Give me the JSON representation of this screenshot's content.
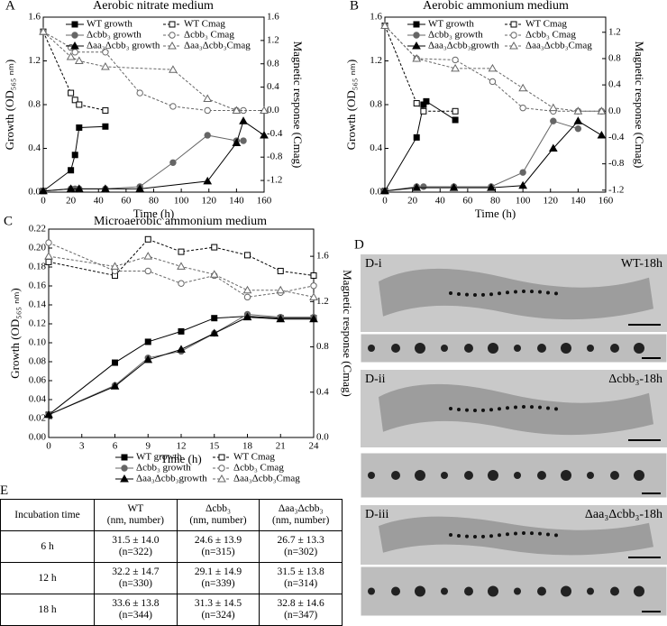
{
  "chart_data": [
    {
      "type": "line",
      "label": "A",
      "title": "Aerobic nitrate medium",
      "x_label": "Time (h)",
      "y_label": "Growth (OD₅₆₅ ₙₘ)",
      "y2_label": "Magnetic response (Cmag)",
      "xlim": [
        0,
        160
      ],
      "xticks": [
        0,
        20,
        40,
        60,
        80,
        100,
        120,
        140,
        160
      ],
      "ylim": [
        0,
        1.6
      ],
      "yticks": [
        {
          "value": 0,
          "label": "0.0"
        },
        0.4,
        0.8,
        1.2,
        1.6
      ],
      "y2lim": [
        -1.4,
        1.6
      ],
      "y2ticks": [
        -1.2,
        -0.8,
        -0.4,
        {
          "value": 0,
          "label": "0.0"
        },
        0.4,
        0.8,
        1.2,
        1.6
      ],
      "legend": "upper right",
      "series": [
        {
          "name": "WT growth",
          "color": "#000",
          "marker": "square",
          "filled": true,
          "dashed": false,
          "x": [
            0,
            20,
            23,
            26,
            45
          ],
          "values": [
            0.01,
            0.2,
            0.34,
            0.59,
            0.6
          ]
        },
        {
          "name": "WT Cmag",
          "color": "#000",
          "marker": "square",
          "filled": false,
          "dashed": true,
          "axis": "y2",
          "x": [
            0,
            20,
            23,
            26,
            45
          ],
          "values": [
            1.35,
            0.3,
            0.18,
            0.1,
            0.0
          ]
        },
        {
          "name": "Δcbb₃ growth",
          "color": "#666",
          "marker": "circle",
          "filled": true,
          "dashed": false,
          "x": [
            0,
            20,
            23,
            26,
            45,
            70,
            94,
            119,
            140,
            145
          ],
          "values": [
            0.01,
            0.03,
            0.03,
            0.03,
            0.03,
            0.05,
            0.27,
            0.52,
            0.47,
            0.47
          ]
        },
        {
          "name": "Δcbb₃ Cmag",
          "color": "#666",
          "marker": "circle",
          "filled": false,
          "dashed": true,
          "axis": "y2",
          "x": [
            0,
            20,
            23,
            45,
            70,
            94,
            119,
            140,
            145
          ],
          "values": [
            1.35,
            1.08,
            1.0,
            1.0,
            0.3,
            0.07,
            0.0,
            0.0,
            0.0
          ]
        },
        {
          "name": "Δaa₃Δcbb₃ growth",
          "color": "#000",
          "marker": "triangle",
          "filled": true,
          "dashed": false,
          "x": [
            0,
            20,
            26,
            45,
            70,
            119,
            140,
            145,
            160
          ],
          "values": [
            0.01,
            0.03,
            0.03,
            0.03,
            0.03,
            0.1,
            0.45,
            0.65,
            0.52
          ]
        },
        {
          "name": "Δaa₃Δcbb₃Cmag",
          "color": "#666",
          "marker": "triangle",
          "filled": false,
          "dashed": true,
          "axis": "y2",
          "x": [
            0,
            20,
            26,
            45,
            94,
            119,
            140,
            160
          ],
          "values": [
            1.35,
            0.92,
            0.85,
            0.75,
            0.7,
            0.2,
            0.0,
            0.0
          ]
        }
      ]
    },
    {
      "type": "line",
      "label": "B",
      "title": "Aerobic ammonium medium",
      "x_label": "Time (h)",
      "y_label": "Growth (OD₅₆₅ ₙₘ)",
      "y2_label": "Magnetic response (Cmag)",
      "xlim": [
        0,
        160
      ],
      "xticks": [
        0,
        20,
        40,
        60,
        80,
        100,
        120,
        140,
        160
      ],
      "ylim": [
        0,
        1.6
      ],
      "yticks": [
        {
          "value": 0,
          "label": "0.0"
        },
        0.4,
        0.8,
        1.2,
        1.6
      ],
      "y2lim": [
        -1.23,
        1.43
      ],
      "y2ticks": [
        -1.2,
        -0.8,
        -0.4,
        {
          "value": 0,
          "label": "0.0"
        },
        0.4,
        0.8,
        1.2
      ],
      "legend": "upper right",
      "series": [
        {
          "name": "WT growth",
          "color": "#000",
          "marker": "square",
          "filled": true,
          "dashed": false,
          "x": [
            0,
            23,
            28,
            30,
            51
          ],
          "values": [
            0.01,
            0.5,
            0.8,
            0.83,
            0.66
          ]
        },
        {
          "name": "WT Cmag",
          "color": "#000",
          "marker": "square",
          "filled": false,
          "dashed": true,
          "axis": "y2",
          "x": [
            0,
            23,
            28,
            51
          ],
          "values": [
            1.3,
            0.12,
            0.0,
            0.0
          ]
        },
        {
          "name": "Δcbb₃ growth",
          "color": "#666",
          "marker": "circle",
          "filled": true,
          "dashed": false,
          "x": [
            0,
            23,
            28,
            50,
            77,
            100,
            122,
            140
          ],
          "values": [
            0.01,
            0.05,
            0.05,
            0.05,
            0.05,
            0.18,
            0.65,
            0.58
          ]
        },
        {
          "name": "Δcbb₃ Cmag",
          "color": "#666",
          "marker": "circle",
          "filled": false,
          "dashed": true,
          "axis": "y2",
          "x": [
            0,
            23,
            51,
            78,
            100,
            122,
            140,
            157
          ],
          "values": [
            1.3,
            0.8,
            0.78,
            0.45,
            0.05,
            0.0,
            0.0,
            0.0
          ]
        },
        {
          "name": "Δaa₃Δcbb₃growth",
          "color": "#000",
          "marker": "triangle",
          "filled": true,
          "dashed": false,
          "x": [
            0,
            23,
            50,
            77,
            100,
            122,
            140,
            157
          ],
          "values": [
            0.01,
            0.04,
            0.04,
            0.04,
            0.06,
            0.4,
            0.65,
            0.52
          ]
        },
        {
          "name": "Δaa₃Δcbb₃Cmag",
          "color": "#666",
          "marker": "triangle",
          "filled": false,
          "dashed": true,
          "axis": "y2",
          "x": [
            0,
            23,
            51,
            78,
            100,
            122,
            140,
            157
          ],
          "values": [
            1.3,
            0.8,
            0.65,
            0.65,
            0.35,
            0.05,
            0.0,
            0.0
          ]
        }
      ]
    },
    {
      "type": "line",
      "label": "C",
      "title": "Microaerobic ammonium medium",
      "x_label": "Time (h)",
      "y_label": "Growth (OD₅₆₅ ₙₘ)",
      "y2_label": "Magnetic response (Cmag)",
      "xlim": [
        0,
        24
      ],
      "xticks": [
        0,
        3,
        6,
        9,
        12,
        15,
        18,
        21,
        24
      ],
      "ylim": [
        0,
        0.22
      ],
      "yticks": [
        {
          "value": 0,
          "label": "0.00"
        },
        0.02,
        0.04,
        0.06,
        0.08,
        {
          "value": 0.1,
          "label": "0.10"
        },
        0.12,
        0.14,
        0.16,
        0.18,
        {
          "value": 0.2,
          "label": "0.20"
        },
        0.22
      ],
      "y2lim": [
        0,
        1.84
      ],
      "y2ticks": [
        {
          "value": 0,
          "label": "0.0"
        },
        0.4,
        0.8,
        1.2,
        1.6
      ],
      "legend": "lower right",
      "series": [
        {
          "name": "WT growth",
          "color": "#000",
          "marker": "square",
          "filled": true,
          "dashed": false,
          "x": [
            0,
            6,
            9,
            12,
            15,
            18,
            21,
            24
          ],
          "values": [
            0.024,
            0.079,
            0.101,
            0.112,
            0.126,
            0.128,
            0.126,
            0.126
          ]
        },
        {
          "name": "WT Cmag",
          "color": "#000",
          "marker": "square",
          "filled": false,
          "dashed": true,
          "axis": "y2",
          "x": [
            0,
            6,
            9,
            12,
            15,
            18,
            21,
            24
          ],
          "values": [
            1.55,
            1.43,
            1.75,
            1.64,
            1.68,
            1.61,
            1.47,
            1.43
          ]
        },
        {
          "name": "Δcbb₃ growth",
          "color": "#666",
          "marker": "circle",
          "filled": true,
          "dashed": false,
          "x": [
            0,
            6,
            9,
            12,
            15,
            18,
            21,
            24
          ],
          "values": [
            0.024,
            0.055,
            0.084,
            0.091,
            0.11,
            0.13,
            0.127,
            0.127
          ]
        },
        {
          "name": "Δcbb₃ Cmag",
          "color": "#666",
          "marker": "circle",
          "filled": false,
          "dashed": true,
          "axis": "y2",
          "x": [
            0,
            6,
            9,
            12,
            15,
            18,
            21,
            24
          ],
          "values": [
            1.72,
            1.47,
            1.47,
            1.36,
            1.43,
            1.24,
            1.28,
            1.34
          ]
        },
        {
          "name": "Δaa₃Δcbb₃growth",
          "color": "#000",
          "marker": "triangle",
          "filled": true,
          "dashed": false,
          "x": [
            0,
            6,
            9,
            12,
            15,
            18,
            21,
            24
          ],
          "values": [
            0.024,
            0.054,
            0.082,
            0.093,
            0.11,
            0.127,
            0.125,
            0.125
          ]
        },
        {
          "name": "Δaa₃Δcbb₃Cmag",
          "color": "#666",
          "marker": "triangle",
          "filled": false,
          "dashed": true,
          "axis": "y2",
          "x": [
            0,
            6,
            9,
            12,
            15,
            18,
            21,
            24
          ],
          "values": [
            1.6,
            1.51,
            1.6,
            1.51,
            1.44,
            1.3,
            1.3,
            1.24
          ]
        }
      ]
    }
  ],
  "table": {
    "label": "E",
    "header": [
      "Incubation time",
      [
        "WT",
        "(nm, number)"
      ],
      [
        "Δcbb₃",
        "(nm, number)"
      ],
      [
        "Δaa₃Δcbb₃",
        "(nm, number)"
      ]
    ],
    "rows": [
      [
        "6 h",
        [
          "31.5 ± 14.0",
          "(n=322)"
        ],
        [
          "24.6 ± 13.9",
          "(n=315)"
        ],
        [
          "26.7 ± 13.3",
          "(n=302)"
        ]
      ],
      [
        "12 h",
        [
          "32.2 ± 14.7",
          "(n=330)"
        ],
        [
          "29.1 ± 14.9",
          "(n=339)"
        ],
        [
          "31.5 ± 13.8",
          "(n=314)"
        ]
      ],
      [
        "18 h",
        [
          "33.6 ± 13.8",
          "(n=344)"
        ],
        [
          "31.3 ± 14.5",
          "(n=324)"
        ],
        [
          "32.8 ± 14.6",
          "(n=347)"
        ]
      ]
    ]
  },
  "images": {
    "label": "D",
    "panels": [
      {
        "label": "D-i",
        "caption": "WT-18h"
      },
      {
        "label": "D-ii",
        "caption": "Δcbb₃-18h"
      },
      {
        "label": "D-iii",
        "caption": "Δaa₃Δcbb₃-18h"
      }
    ]
  }
}
